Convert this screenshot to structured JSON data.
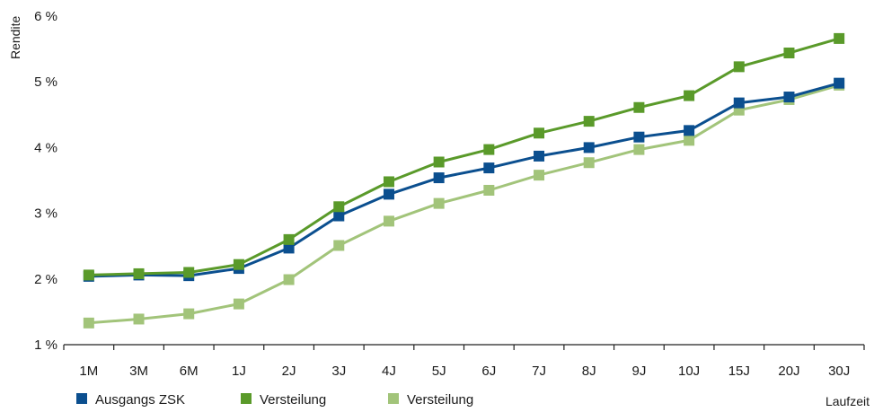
{
  "chart_data": {
    "type": "line",
    "categories": [
      "1M",
      "3M",
      "6M",
      "1J",
      "2J",
      "3J",
      "4J",
      "5J",
      "6J",
      "7J",
      "8J",
      "9J",
      "10J",
      "15J",
      "20J",
      "30J"
    ],
    "ylabel": "Rendite",
    "xlabel": "Laufzeit",
    "ylim": [
      1,
      6
    ],
    "yticks": [
      "1 %",
      "2 %",
      "3 %",
      "4 %",
      "5 %",
      "6 %"
    ],
    "grid": false,
    "legend": "bottom-left",
    "series": [
      {
        "name": "Ausgangs ZSK",
        "color": "#0b4f8f",
        "values": [
          2.04,
          2.06,
          2.05,
          2.16,
          2.47,
          2.96,
          3.29,
          3.54,
          3.69,
          3.87,
          4.0,
          4.16,
          4.26,
          4.68,
          4.77,
          4.98
        ]
      },
      {
        "name": "Versteilung",
        "color": "#5a9a2a",
        "values": [
          2.06,
          2.08,
          2.1,
          2.22,
          2.6,
          3.1,
          3.48,
          3.78,
          3.97,
          4.22,
          4.4,
          4.61,
          4.79,
          5.23,
          5.44,
          5.66
        ]
      },
      {
        "name": "Versteilung",
        "color": "#a2c47a",
        "values": [
          1.33,
          1.39,
          1.47,
          1.62,
          1.99,
          2.51,
          2.88,
          3.15,
          3.35,
          3.58,
          3.77,
          3.97,
          4.11,
          4.57,
          4.73,
          4.95
        ]
      }
    ]
  }
}
